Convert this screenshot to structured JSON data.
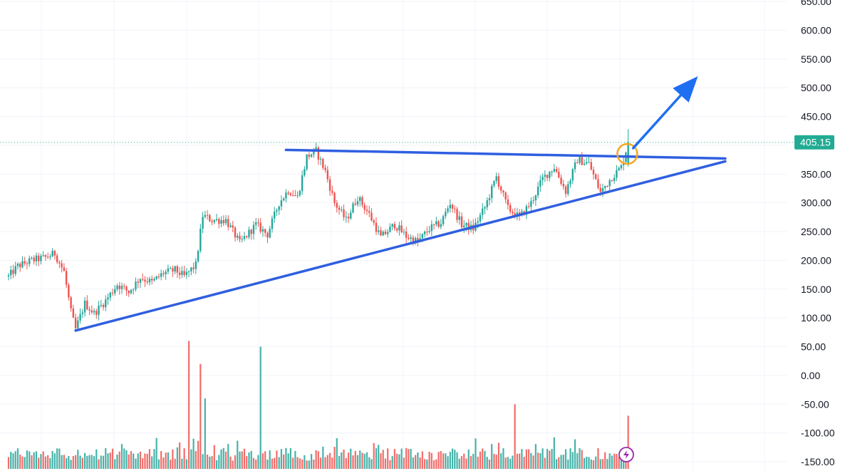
{
  "chart_data": {
    "type": "candlestick",
    "title": "",
    "xlabel": "",
    "ylabel": "",
    "ylim": [
      -150,
      650
    ],
    "y_ticks": [
      "650.00",
      "600.00",
      "550.00",
      "500.00",
      "450.00",
      "400.00",
      "350.00",
      "300.00",
      "250.00",
      "200.00",
      "150.00",
      "100.00",
      "50.00",
      "0.00",
      "-50.00",
      "-100.00",
      "-150.00"
    ],
    "last_price": "405.15",
    "colors": {
      "up": "#26a69a",
      "down": "#ef5350",
      "volume_up": "#26a69a",
      "volume_down": "#ef5350",
      "trendline": "#2f5fe0",
      "arrow": "#1f6ff2",
      "breakout_circle": "#f5a623",
      "last_price_badge": "#22ab94",
      "grid": "#f0f3fa",
      "axis_text": "#131722"
    },
    "grid": true,
    "price_series": {
      "description_anchor_points": [
        {
          "i": 0,
          "p": 172
        },
        {
          "i": 4,
          "p": 190
        },
        {
          "i": 10,
          "p": 200
        },
        {
          "i": 16,
          "p": 205
        },
        {
          "i": 20,
          "p": 212
        },
        {
          "i": 24,
          "p": 180
        },
        {
          "i": 27,
          "p": 110
        },
        {
          "i": 29,
          "p": 80
        },
        {
          "i": 33,
          "p": 125
        },
        {
          "i": 37,
          "p": 108
        },
        {
          "i": 42,
          "p": 130
        },
        {
          "i": 47,
          "p": 158
        },
        {
          "i": 52,
          "p": 145
        },
        {
          "i": 57,
          "p": 170
        },
        {
          "i": 62,
          "p": 162
        },
        {
          "i": 67,
          "p": 178
        },
        {
          "i": 72,
          "p": 183
        },
        {
          "i": 76,
          "p": 172
        },
        {
          "i": 81,
          "p": 192
        },
        {
          "i": 84,
          "p": 278
        },
        {
          "i": 88,
          "p": 270
        },
        {
          "i": 94,
          "p": 270
        },
        {
          "i": 100,
          "p": 230
        },
        {
          "i": 107,
          "p": 262
        },
        {
          "i": 112,
          "p": 245
        },
        {
          "i": 117,
          "p": 300
        },
        {
          "i": 121,
          "p": 322
        },
        {
          "i": 125,
          "p": 310
        },
        {
          "i": 129,
          "p": 380
        },
        {
          "i": 133,
          "p": 390
        },
        {
          "i": 137,
          "p": 355
        },
        {
          "i": 141,
          "p": 300
        },
        {
          "i": 146,
          "p": 270
        },
        {
          "i": 151,
          "p": 310
        },
        {
          "i": 156,
          "p": 280
        },
        {
          "i": 161,
          "p": 240
        },
        {
          "i": 167,
          "p": 262
        },
        {
          "i": 172,
          "p": 242
        },
        {
          "i": 177,
          "p": 232
        },
        {
          "i": 182,
          "p": 255
        },
        {
          "i": 187,
          "p": 265
        },
        {
          "i": 191,
          "p": 300
        },
        {
          "i": 196,
          "p": 262
        },
        {
          "i": 201,
          "p": 255
        },
        {
          "i": 206,
          "p": 292
        },
        {
          "i": 211,
          "p": 345
        },
        {
          "i": 216,
          "p": 290
        },
        {
          "i": 221,
          "p": 275
        },
        {
          "i": 226,
          "p": 300
        },
        {
          "i": 231,
          "p": 342
        },
        {
          "i": 236,
          "p": 362
        },
        {
          "i": 241,
          "p": 320
        },
        {
          "i": 246,
          "p": 375
        },
        {
          "i": 251,
          "p": 368
        },
        {
          "i": 256,
          "p": 318
        },
        {
          "i": 261,
          "p": 345
        },
        {
          "i": 265,
          "p": 362
        },
        {
          "i": 268,
          "p": 405
        }
      ]
    },
    "volume_spikes": [
      {
        "i": 78,
        "v": 60
      },
      {
        "i": 83,
        "v": 20
      },
      {
        "i": 85,
        "v": -40
      },
      {
        "i": 109,
        "v": 50
      },
      {
        "i": 219,
        "v": -50
      },
      {
        "i": 268,
        "v": -70
      }
    ],
    "annotations": {
      "trendline_upper": {
        "from": {
          "i": 120,
          "p": 392
        },
        "to": {
          "i": 310,
          "p": 377
        }
      },
      "trendline_lower": {
        "from": {
          "i": 29,
          "p": 78
        },
        "to": {
          "i": 310,
          "p": 372
        }
      },
      "breakout_circle": {
        "i": 267,
        "p": 385
      },
      "arrow": {
        "from": {
          "i": 272,
          "p": 395
        },
        "to": {
          "i": 292,
          "p": 520
        }
      }
    }
  }
}
